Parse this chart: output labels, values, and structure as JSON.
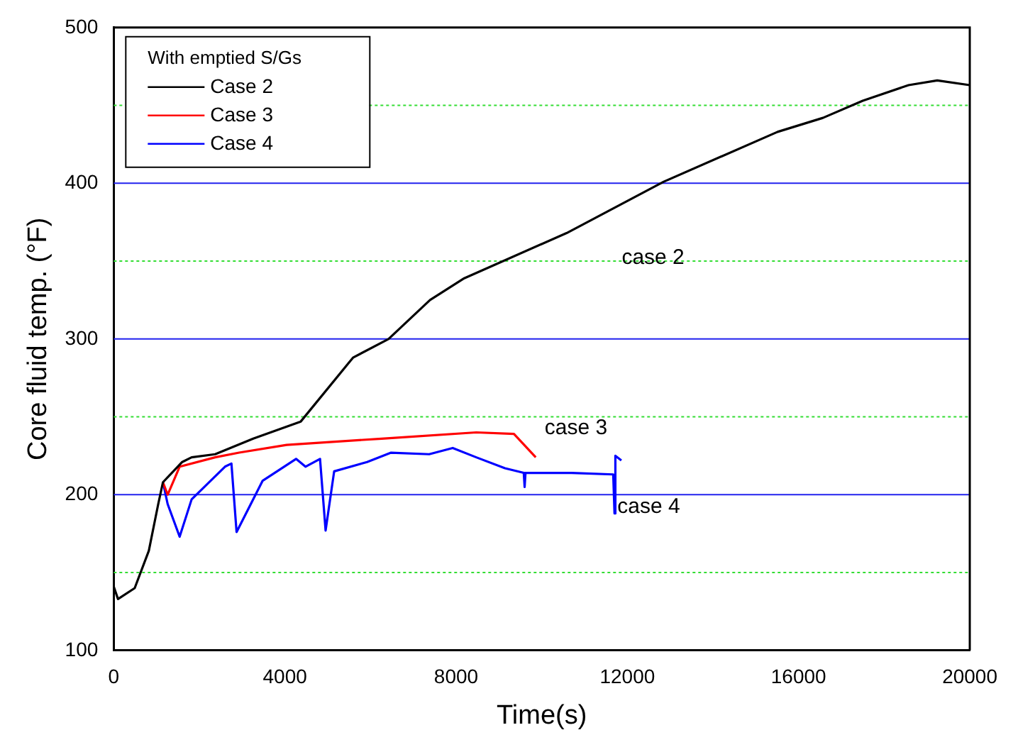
{
  "chart_data": {
    "type": "line",
    "xlabel": "Time(s)",
    "ylabel": "Core fluid temp. (°F)",
    "legend_title": "With emptied S/Gs",
    "xlim": [
      0,
      20000
    ],
    "xticks": [
      0,
      4000,
      8000,
      12000,
      16000,
      20000
    ],
    "ylim": [
      100,
      500
    ],
    "yticks": [
      100,
      {
        "value": 150,
        "label": null
      },
      200,
      {
        "value": 250,
        "label": null
      },
      300,
      {
        "value": 350,
        "label": null
      },
      400,
      {
        "value": 450,
        "label": null
      },
      500
    ],
    "grid": "y",
    "legend": "top left",
    "line_style": "solid",
    "marker": "none",
    "series": [
      {
        "name": "Case 2",
        "color": "#000000",
        "x": [
          0,
          100,
          490,
          820,
          1040,
          1150,
          1600,
          1820,
          2370,
          3260,
          4370,
          5590,
          6420,
          7390,
          8190,
          10580,
          12850,
          15510,
          16570,
          17500,
          18570,
          19240,
          20000
        ],
        "values": [
          141,
          133,
          140,
          164,
          194,
          208,
          221,
          224,
          226,
          236,
          247,
          288,
          300,
          325,
          339,
          368,
          401,
          433,
          442,
          453,
          463,
          466,
          463
        ]
      },
      {
        "name": "Case 3",
        "color": "#ff0000",
        "x": [
          1150,
          1260,
          1540,
          2370,
          2930,
          4040,
          6260,
          8470,
          9350,
          9690,
          9860
        ],
        "values": [
          208,
          200,
          218,
          224,
          227,
          232,
          236,
          240,
          239,
          229,
          224
        ]
      },
      {
        "name": "Case 4",
        "color": "#0000ff",
        "x": [
          1150,
          1260,
          1540,
          1820,
          2600,
          2750,
          2870,
          3480,
          4260,
          4480,
          4820,
          4950,
          5150,
          5920,
          6480,
          7370,
          7920,
          8470,
          9140,
          9580,
          9600,
          9620,
          10700,
          11670,
          11700,
          11720,
          11860
        ],
        "values": [
          208,
          194,
          173,
          197,
          218,
          220,
          176,
          209,
          223,
          218,
          223,
          177,
          215,
          221,
          227,
          226,
          230,
          224,
          217,
          214,
          205,
          214,
          214,
          213,
          188,
          225,
          222
        ]
      }
    ],
    "annotations": [
      "case 2",
      "case 3",
      "case 4"
    ]
  }
}
